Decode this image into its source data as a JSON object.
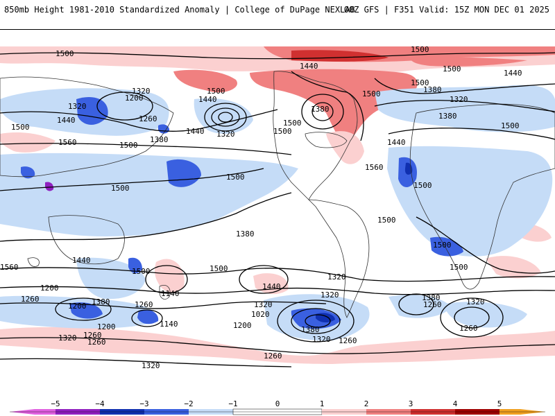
{
  "header": {
    "title": "850mb Height 1981-2010 Standardized Anomaly | College of DuPage NEXLAB",
    "valid": "00Z GFS | F351 Valid: 15Z MON DEC 01 2025"
  },
  "colors": {
    "neg5": "#e060e0",
    "neg4": "#9020c0",
    "neg3": "#1030b0",
    "neg2": "#3a60e0",
    "neg1": "#c5dcf7",
    "pos1": "#fbd0d0",
    "pos2": "#f08080",
    "pos3": "#d03030",
    "pos4": "#a00000",
    "pos5": "#f0a020"
  },
  "map": {
    "contour_labels": [
      {
        "v": "1500"
      },
      {
        "v": "1500"
      },
      {
        "v": "1440"
      },
      {
        "v": "1500"
      },
      {
        "v": "1440"
      },
      {
        "v": "1500"
      },
      {
        "v": "1440"
      },
      {
        "v": "1320"
      },
      {
        "v": "1200"
      },
      {
        "v": "1320"
      },
      {
        "v": "1440"
      },
      {
        "v": "1500"
      },
      {
        "v": "1560"
      },
      {
        "v": "1260"
      },
      {
        "v": "1380"
      },
      {
        "v": "1500"
      },
      {
        "v": "1440"
      },
      {
        "v": "1320"
      },
      {
        "v": "1380"
      },
      {
        "v": "1500"
      },
      {
        "v": "1500"
      },
      {
        "v": "1380"
      },
      {
        "v": "1380"
      },
      {
        "v": "1320"
      },
      {
        "v": "1500"
      },
      {
        "v": "1440"
      },
      {
        "v": "1560"
      },
      {
        "v": "1500"
      },
      {
        "v": "1500"
      },
      {
        "v": "1500"
      },
      {
        "v": "1500"
      },
      {
        "v": "1500"
      },
      {
        "v": "1500"
      },
      {
        "v": "1380"
      },
      {
        "v": "1500"
      },
      {
        "v": "1440"
      },
      {
        "v": "1560"
      },
      {
        "v": "1500"
      },
      {
        "v": "1500"
      },
      {
        "v": "1440"
      },
      {
        "v": "1320"
      },
      {
        "v": "1140"
      },
      {
        "v": "1200"
      },
      {
        "v": "1260"
      },
      {
        "v": "1320"
      },
      {
        "v": "1200"
      },
      {
        "v": "1380"
      },
      {
        "v": "1260"
      },
      {
        "v": "1320"
      },
      {
        "v": "1020"
      },
      {
        "v": "1140"
      },
      {
        "v": "1200"
      },
      {
        "v": "1380"
      },
      {
        "v": "1320"
      },
      {
        "v": "1260"
      },
      {
        "v": "1200"
      },
      {
        "v": "1260"
      },
      {
        "v": "1320"
      },
      {
        "v": "1260"
      },
      {
        "v": "1380"
      },
      {
        "v": "1260"
      },
      {
        "v": "1320"
      },
      {
        "v": "1260"
      },
      {
        "v": "1320"
      },
      {
        "v": "1260"
      },
      {
        "v": "1500"
      }
    ]
  },
  "legend": {
    "ticks": [
      "−5",
      "−4",
      "−3",
      "−2",
      "−1",
      "0",
      "1",
      "2",
      "3",
      "4",
      "5"
    ]
  }
}
